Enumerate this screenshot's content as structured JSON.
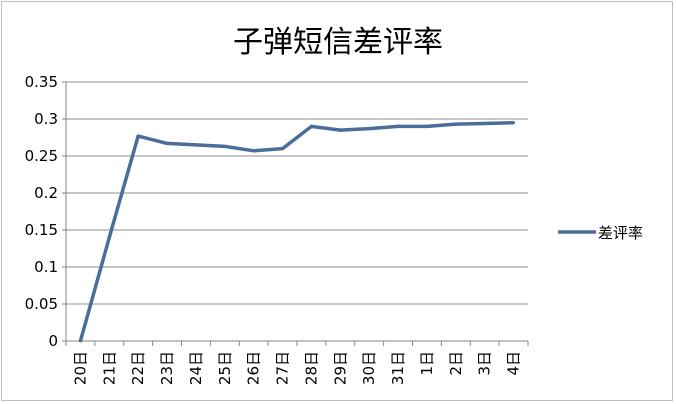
{
  "chart_data": {
    "type": "line",
    "title": "子弹短信差评率",
    "categories": [
      "20日",
      "21日",
      "22日",
      "23日",
      "24日",
      "25日",
      "26日",
      "27日",
      "28日",
      "29日",
      "30日",
      "31日",
      "1日",
      "2日",
      "3日",
      "4日"
    ],
    "series": [
      {
        "name": "差评率",
        "color": "#4a6d99",
        "values": [
          0,
          0.14,
          0.277,
          0.267,
          0.265,
          0.263,
          0.257,
          0.26,
          0.29,
          0.285,
          0.287,
          0.29,
          0.29,
          0.293,
          0.294,
          0.295
        ]
      }
    ],
    "yticks": [
      "0",
      "0.05",
      "0.1",
      "0.15",
      "0.2",
      "0.25",
      "0.3",
      "0.35"
    ],
    "ylim": [
      0,
      0.35
    ],
    "grid": true,
    "legend": "right"
  }
}
